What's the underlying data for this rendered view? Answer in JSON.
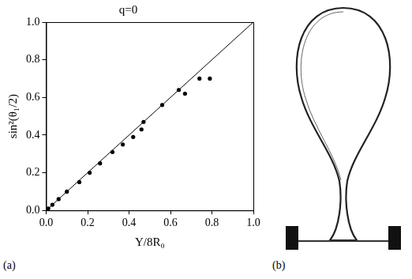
{
  "chart_data": {
    "type": "scatter",
    "title": "q=0",
    "x_label": "Y/8R₀",
    "y_label": "sin²(θ₁/2)",
    "xlim": [
      0,
      1
    ],
    "ylim": [
      0,
      1
    ],
    "xticks": [
      {
        "value": 0,
        "label": "0.0"
      },
      {
        "value": 0.2,
        "label": "0.2"
      },
      {
        "value": 0.4,
        "label": "0.4"
      },
      {
        "value": 0.6,
        "label": "0.6"
      },
      {
        "value": 0.8,
        "label": "0.8"
      },
      {
        "value": 1,
        "label": "1.0"
      }
    ],
    "yticks": [
      {
        "value": 0,
        "label": "0.0"
      },
      {
        "value": 0.2,
        "label": "0.2"
      },
      {
        "value": 0.4,
        "label": "0.4"
      },
      {
        "value": 0.6,
        "label": "0.6"
      },
      {
        "value": 0.8,
        "label": "0.8"
      },
      {
        "value": 1,
        "label": "1.0"
      }
    ],
    "grid": false,
    "series": [
      {
        "type": "scatter",
        "color": "#000000",
        "marker": "circle",
        "x": [
          0.01,
          0.03,
          0.06,
          0.1,
          0.16,
          0.21,
          0.26,
          0.32,
          0.37,
          0.42,
          0.46,
          0.47,
          0.56,
          0.64,
          0.67,
          0.74,
          0.79
        ],
        "values": [
          0.01,
          0.03,
          0.06,
          0.1,
          0.15,
          0.2,
          0.25,
          0.31,
          0.35,
          0.39,
          0.43,
          0.47,
          0.56,
          0.64,
          0.62,
          0.7,
          0.7
        ]
      },
      {
        "type": "line",
        "color": "#000000",
        "line_style": "solid",
        "x": [
          0,
          1
        ],
        "values": [
          0,
          1
        ]
      }
    ]
  },
  "panel_labels": [
    "(a)",
    "(b)"
  ]
}
